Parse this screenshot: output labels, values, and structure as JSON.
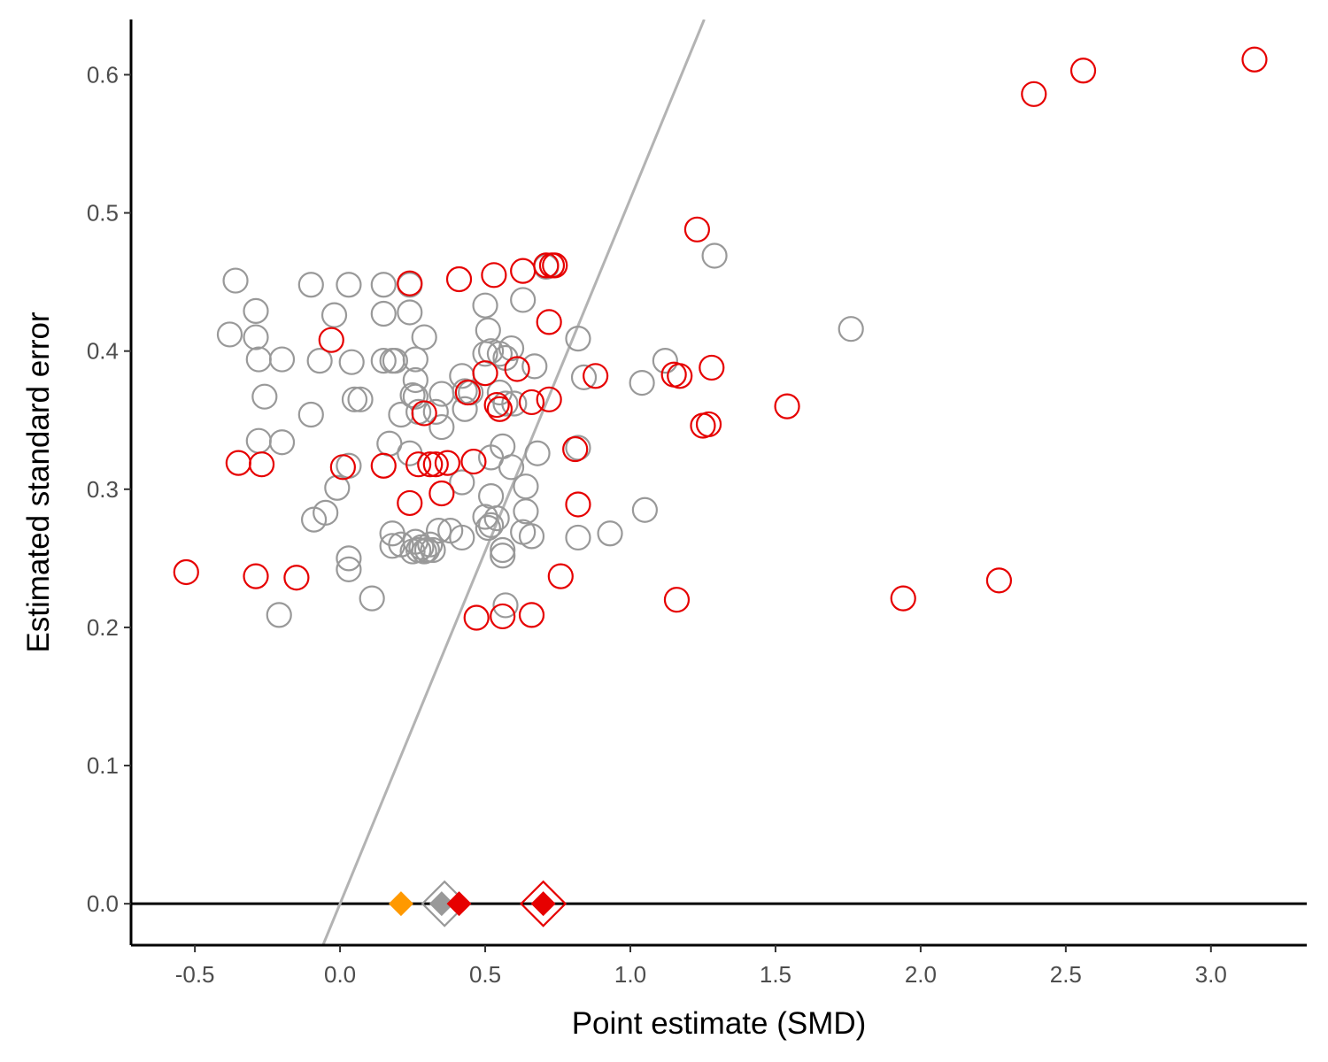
{
  "chart_data": {
    "type": "scatter",
    "title": "",
    "xlabel": "Point estimate (SMD)",
    "ylabel": "Estimated standard error",
    "xlim": [
      -0.72,
      3.33
    ],
    "ylim": [
      -0.03,
      0.64
    ],
    "x_ticks": [
      -0.5,
      0.0,
      0.5,
      1.0,
      1.5,
      2.0,
      2.5,
      3.0
    ],
    "x_tick_labels": [
      "-0.5",
      "0.0",
      "0.5",
      "1.0",
      "1.5",
      "2.0",
      "2.5",
      "3.0"
    ],
    "y_ticks": [
      0.0,
      0.1,
      0.2,
      0.3,
      0.4,
      0.5,
      0.6
    ],
    "y_tick_labels": [
      "0.0",
      "0.1",
      "0.2",
      "0.3",
      "0.4",
      "0.5",
      "0.6"
    ],
    "grid": false,
    "legend": "none",
    "reference_lines": [
      {
        "kind": "horizontal",
        "y": 0.0,
        "color": "#000000"
      },
      {
        "kind": "significance-threshold",
        "slope_se_per_smd": 0.5102,
        "x_at_se0": 0.0,
        "color": "#b3b3b3"
      }
    ],
    "series": [
      {
        "marker": "open-circle",
        "color": "#999999",
        "points": [
          [
            -0.36,
            0.451
          ],
          [
            -0.38,
            0.412
          ],
          [
            -0.29,
            0.429
          ],
          [
            -0.29,
            0.41
          ],
          [
            -0.28,
            0.394
          ],
          [
            -0.26,
            0.367
          ],
          [
            -0.28,
            0.335
          ],
          [
            -0.2,
            0.394
          ],
          [
            -0.2,
            0.334
          ],
          [
            -0.21,
            0.209
          ],
          [
            -0.1,
            0.448
          ],
          [
            -0.07,
            0.393
          ],
          [
            -0.1,
            0.354
          ],
          [
            -0.02,
            0.426
          ],
          [
            0.03,
            0.448
          ],
          [
            0.04,
            0.392
          ],
          [
            0.05,
            0.365
          ],
          [
            0.07,
            0.365
          ],
          [
            -0.01,
            0.301
          ],
          [
            -0.05,
            0.283
          ],
          [
            -0.09,
            0.278
          ],
          [
            0.03,
            0.317
          ],
          [
            0.03,
            0.25
          ],
          [
            0.03,
            0.242
          ],
          [
            0.11,
            0.221
          ],
          [
            0.15,
            0.448
          ],
          [
            0.15,
            0.427
          ],
          [
            0.15,
            0.393
          ],
          [
            0.18,
            0.393
          ],
          [
            0.19,
            0.393
          ],
          [
            0.17,
            0.333
          ],
          [
            0.18,
            0.268
          ],
          [
            0.18,
            0.259
          ],
          [
            0.21,
            0.354
          ],
          [
            0.24,
            0.448
          ],
          [
            0.24,
            0.428
          ],
          [
            0.26,
            0.394
          ],
          [
            0.26,
            0.379
          ],
          [
            0.26,
            0.367
          ],
          [
            0.25,
            0.368
          ],
          [
            0.29,
            0.41
          ],
          [
            0.27,
            0.356
          ],
          [
            0.24,
            0.326
          ],
          [
            0.21,
            0.26
          ],
          [
            0.25,
            0.255
          ],
          [
            0.26,
            0.262
          ],
          [
            0.27,
            0.256
          ],
          [
            0.28,
            0.258
          ],
          [
            0.29,
            0.255
          ],
          [
            0.3,
            0.256
          ],
          [
            0.31,
            0.26
          ],
          [
            0.32,
            0.256
          ],
          [
            0.33,
            0.356
          ],
          [
            0.35,
            0.369
          ],
          [
            0.35,
            0.345
          ],
          [
            0.34,
            0.27
          ],
          [
            0.38,
            0.27
          ],
          [
            0.42,
            0.265
          ],
          [
            0.42,
            0.305
          ],
          [
            0.42,
            0.382
          ],
          [
            0.43,
            0.371
          ],
          [
            0.45,
            0.37
          ],
          [
            0.43,
            0.358
          ],
          [
            0.5,
            0.433
          ],
          [
            0.51,
            0.415
          ],
          [
            0.5,
            0.398
          ],
          [
            0.52,
            0.4
          ],
          [
            0.55,
            0.398
          ],
          [
            0.57,
            0.395
          ],
          [
            0.55,
            0.37
          ],
          [
            0.57,
            0.362
          ],
          [
            0.6,
            0.362
          ],
          [
            0.59,
            0.402
          ],
          [
            0.63,
            0.437
          ],
          [
            0.67,
            0.389
          ],
          [
            0.52,
            0.323
          ],
          [
            0.56,
            0.331
          ],
          [
            0.59,
            0.316
          ],
          [
            0.52,
            0.295
          ],
          [
            0.5,
            0.28
          ],
          [
            0.52,
            0.274
          ],
          [
            0.54,
            0.279
          ],
          [
            0.51,
            0.272
          ],
          [
            0.56,
            0.252
          ],
          [
            0.56,
            0.256
          ],
          [
            0.57,
            0.216
          ],
          [
            0.64,
            0.302
          ],
          [
            0.64,
            0.284
          ],
          [
            0.63,
            0.269
          ],
          [
            0.66,
            0.266
          ],
          [
            0.68,
            0.326
          ],
          [
            0.71,
            0.461
          ],
          [
            0.82,
            0.409
          ],
          [
            0.84,
            0.381
          ],
          [
            0.82,
            0.33
          ],
          [
            0.82,
            0.265
          ],
          [
            0.93,
            0.268
          ],
          [
            1.04,
            0.377
          ],
          [
            1.05,
            0.285
          ],
          [
            1.12,
            0.393
          ],
          [
            1.29,
            0.469
          ],
          [
            1.76,
            0.416
          ]
        ]
      },
      {
        "marker": "open-circle",
        "color": "#e60000",
        "points": [
          [
            -0.53,
            0.24
          ],
          [
            -0.35,
            0.319
          ],
          [
            -0.27,
            0.318
          ],
          [
            -0.29,
            0.237
          ],
          [
            -0.15,
            0.236
          ],
          [
            -0.03,
            0.408
          ],
          [
            0.01,
            0.316
          ],
          [
            0.15,
            0.317
          ],
          [
            0.24,
            0.449
          ],
          [
            0.24,
            0.29
          ],
          [
            0.27,
            0.318
          ],
          [
            0.29,
            0.355
          ],
          [
            0.31,
            0.318
          ],
          [
            0.33,
            0.318
          ],
          [
            0.35,
            0.297
          ],
          [
            0.37,
            0.319
          ],
          [
            0.41,
            0.452
          ],
          [
            0.44,
            0.37
          ],
          [
            0.46,
            0.32
          ],
          [
            0.47,
            0.207
          ],
          [
            0.5,
            0.384
          ],
          [
            0.53,
            0.455
          ],
          [
            0.54,
            0.361
          ],
          [
            0.55,
            0.358
          ],
          [
            0.56,
            0.208
          ],
          [
            0.61,
            0.387
          ],
          [
            0.63,
            0.458
          ],
          [
            0.66,
            0.363
          ],
          [
            0.66,
            0.209
          ],
          [
            0.71,
            0.462
          ],
          [
            0.72,
            0.421
          ],
          [
            0.72,
            0.365
          ],
          [
            0.73,
            0.462
          ],
          [
            0.74,
            0.462
          ],
          [
            0.76,
            0.237
          ],
          [
            0.81,
            0.329
          ],
          [
            0.82,
            0.289
          ],
          [
            0.88,
            0.382
          ],
          [
            1.15,
            0.383
          ],
          [
            1.16,
            0.22
          ],
          [
            1.17,
            0.382
          ],
          [
            1.23,
            0.488
          ],
          [
            1.25,
            0.346
          ],
          [
            1.27,
            0.347
          ],
          [
            1.28,
            0.388
          ],
          [
            1.54,
            0.36
          ],
          [
            1.94,
            0.221
          ],
          [
            2.27,
            0.234
          ],
          [
            2.39,
            0.586
          ],
          [
            2.56,
            0.603
          ],
          [
            3.15,
            0.611
          ]
        ]
      },
      {
        "marker": "filled-diamond",
        "color": "#ff9900",
        "points": [
          [
            0.21,
            0.0
          ]
        ]
      },
      {
        "marker": "filled-diamond",
        "color": "#999999",
        "points": [
          [
            0.35,
            0.0
          ]
        ]
      },
      {
        "marker": "open-diamond",
        "color": "#999999",
        "points": [
          [
            0.36,
            0.0
          ]
        ]
      },
      {
        "marker": "filled-diamond",
        "color": "#e60000",
        "points": [
          [
            0.41,
            0.0
          ],
          [
            0.7,
            0.0
          ]
        ]
      },
      {
        "marker": "open-diamond",
        "color": "#e60000",
        "points": [
          [
            0.7,
            0.0
          ]
        ]
      }
    ]
  }
}
